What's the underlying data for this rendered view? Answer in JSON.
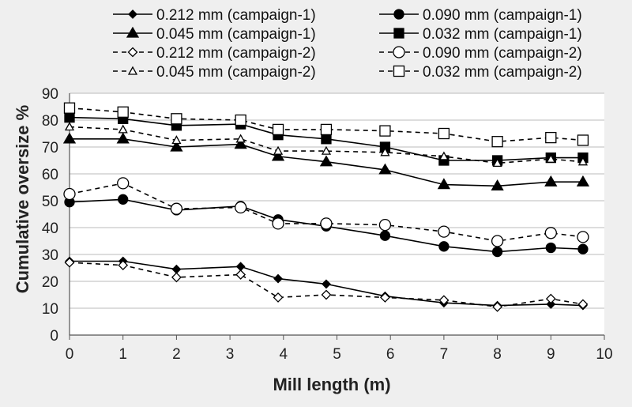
{
  "chart_data": {
    "type": "line",
    "xlabel": "Mill length (m)",
    "ylabel": "Cumulative oversize %",
    "xlim": [
      0,
      10
    ],
    "ylim": [
      0,
      90
    ],
    "xticks": [
      0,
      1,
      2,
      3,
      4,
      5,
      6,
      7,
      8,
      9,
      10
    ],
    "yticks": [
      0,
      10,
      20,
      30,
      40,
      50,
      60,
      70,
      80,
      90
    ],
    "grid": "horizontal",
    "legend_position": "top",
    "series": [
      {
        "name": "0.212 mm (campaign-1)",
        "marker": "diamond",
        "fill": "filled",
        "dash": "solid",
        "x": [
          0,
          1,
          2,
          3.2,
          3.9,
          4.8,
          5.9,
          7,
          8,
          9,
          9.6
        ],
        "y": [
          27.5,
          27.5,
          24.5,
          25.5,
          21,
          19,
          14.5,
          12,
          11,
          11.5,
          11
        ]
      },
      {
        "name": "0.090 mm (campaign-1)",
        "marker": "circle",
        "fill": "filled",
        "dash": "solid",
        "x": [
          0,
          1,
          2,
          3.2,
          3.9,
          4.8,
          5.9,
          7,
          8,
          9,
          9.6
        ],
        "y": [
          49.5,
          50.5,
          46.5,
          48,
          43,
          40.5,
          37,
          33,
          31,
          32.5,
          32
        ]
      },
      {
        "name": "0.045 mm (campaign-1)",
        "marker": "triangle",
        "fill": "filled",
        "dash": "solid",
        "x": [
          0,
          1,
          2,
          3.2,
          3.9,
          4.8,
          5.9,
          7,
          8,
          9,
          9.6
        ],
        "y": [
          73,
          73,
          70,
          71,
          66.5,
          64.5,
          61.5,
          56,
          55.5,
          57,
          57
        ]
      },
      {
        "name": "0.032 mm (campaign-1)",
        "marker": "square",
        "fill": "filled",
        "dash": "solid",
        "x": [
          0,
          1,
          2,
          3.2,
          3.9,
          4.8,
          5.9,
          7,
          8,
          9,
          9.6
        ],
        "y": [
          81,
          80.5,
          78,
          78.5,
          74.5,
          73,
          70,
          65,
          65,
          66,
          66
        ]
      },
      {
        "name": "0.212 mm (campaign-2)",
        "marker": "diamond",
        "fill": "open",
        "dash": "dashed",
        "x": [
          0,
          1,
          2,
          3.2,
          3.9,
          4.8,
          5.9,
          7,
          8,
          9,
          9.6
        ],
        "y": [
          27,
          26,
          21.5,
          22.5,
          14,
          15,
          14,
          13,
          10.5,
          13.5,
          11.5
        ]
      },
      {
        "name": "0.090 mm (campaign-2)",
        "marker": "circle",
        "fill": "open",
        "dash": "dashed",
        "x": [
          0,
          1,
          2,
          3.2,
          3.9,
          4.8,
          5.9,
          7,
          8,
          9,
          9.6
        ],
        "y": [
          52.5,
          56.5,
          47,
          47.5,
          41.5,
          41.5,
          41,
          38.5,
          35,
          38,
          36.5
        ]
      },
      {
        "name": "0.045 mm (campaign-2)",
        "marker": "triangle",
        "fill": "open",
        "dash": "dashed",
        "x": [
          0,
          1,
          2,
          3.2,
          3.9,
          4.8,
          5.9,
          7,
          8,
          9,
          9.6
        ],
        "y": [
          77.5,
          76.5,
          72.5,
          73,
          68.5,
          68.5,
          68,
          66.5,
          64,
          65.5,
          64.5
        ]
      },
      {
        "name": "0.032 mm (campaign-2)",
        "marker": "square",
        "fill": "open",
        "dash": "dashed",
        "x": [
          0,
          1,
          2,
          3.2,
          3.9,
          4.8,
          5.9,
          7,
          8,
          9,
          9.6
        ],
        "y": [
          84.5,
          83,
          80.5,
          80,
          76.5,
          76.5,
          76,
          75,
          72,
          73.5,
          72.5
        ]
      }
    ],
    "colors": {
      "line": "#000000",
      "open_fill": "#ffffff",
      "grid": "#bbbbbb",
      "background": "#efefef",
      "plot_background": "#ffffff"
    }
  }
}
